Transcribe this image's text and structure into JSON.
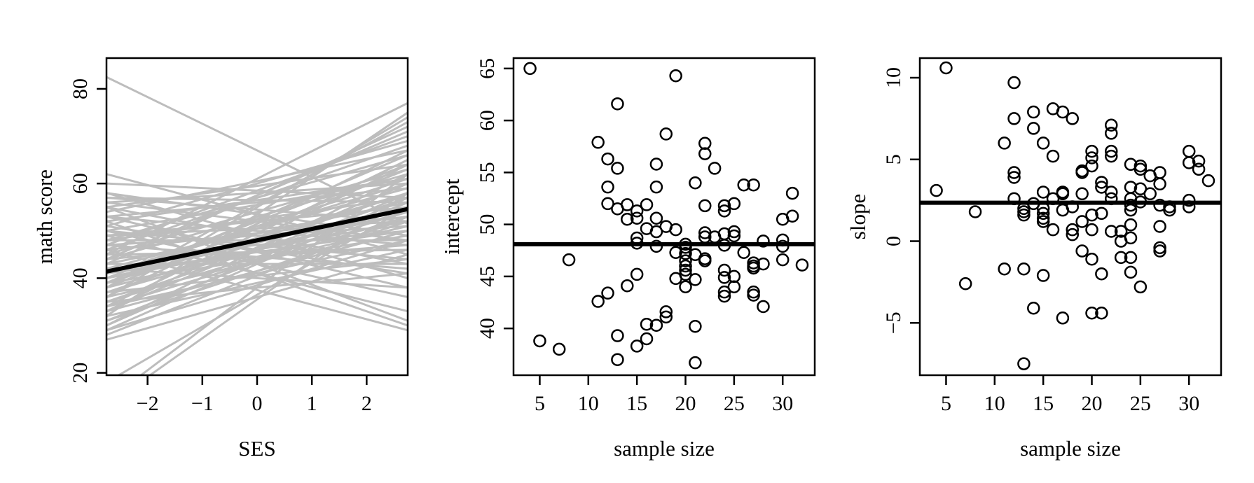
{
  "chart_data": [
    {
      "type": "line",
      "xlabel": "SES",
      "ylabel": "math score",
      "xlim": [
        -2.75,
        2.75
      ],
      "ylim": [
        19.5,
        86.5
      ],
      "xticks": [
        -2,
        -1,
        0,
        1,
        2
      ],
      "yticks": [
        20,
        40,
        60,
        80
      ],
      "xtick_labels": [
        "−2",
        "−1",
        "0",
        "1",
        "2"
      ],
      "ytick_labels": [
        "20",
        "40",
        "60",
        "80"
      ],
      "grid": false,
      "average_line": {
        "x": [
          -2.75,
          2.75
        ],
        "y": [
          41.4,
          54.6
        ],
        "color": "#000000"
      },
      "line_color": "#bdbdbd",
      "group_lines": [
        [
          82.5,
          51.5
        ],
        [
          62,
          45
        ],
        [
          58,
          49
        ],
        [
          57,
          56
        ],
        [
          56,
          60
        ],
        [
          55,
          64
        ],
        [
          53,
          47
        ],
        [
          52,
          61
        ],
        [
          50,
          44
        ],
        [
          49,
          52
        ],
        [
          48,
          57
        ],
        [
          47,
          70
        ],
        [
          46,
          68
        ],
        [
          45,
          77
        ],
        [
          44,
          62
        ],
        [
          43,
          72
        ],
        [
          42,
          59
        ],
        [
          41,
          50
        ],
        [
          40,
          55
        ],
        [
          39,
          66
        ],
        [
          38,
          63
        ],
        [
          37,
          58
        ],
        [
          36,
          74
        ],
        [
          35,
          54
        ],
        [
          34,
          65
        ],
        [
          33,
          60
        ],
        [
          32,
          75
        ],
        [
          31,
          56
        ],
        [
          30,
          62
        ],
        [
          29,
          48
        ],
        [
          28,
          53
        ],
        [
          27,
          45
        ],
        [
          58,
          40
        ],
        [
          55,
          43
        ],
        [
          53,
          38
        ],
        [
          51,
          41
        ],
        [
          50,
          36
        ],
        [
          49,
          55
        ],
        [
          48,
          48
        ],
        [
          47,
          51
        ],
        [
          46,
          53
        ],
        [
          45,
          46
        ],
        [
          44,
          50
        ],
        [
          43,
          56
        ],
        [
          42,
          47
        ],
        [
          41,
          60
        ],
        [
          40,
          52
        ],
        [
          39,
          49
        ],
        [
          38,
          54
        ],
        [
          37,
          44
        ],
        [
          36,
          51
        ],
        [
          35,
          57
        ],
        [
          34,
          48
        ],
        [
          33,
          50
        ],
        [
          32,
          46
        ],
        [
          30,
          58
        ],
        [
          55,
          31
        ],
        [
          52,
          30
        ],
        [
          49,
          33
        ],
        [
          46,
          29
        ],
        [
          54,
          67
        ],
        [
          51,
          69
        ],
        [
          44,
          71
        ],
        [
          38,
          73
        ],
        [
          40,
          64
        ],
        [
          36,
          67
        ],
        [
          60,
          57
        ],
        [
          57,
          52
        ],
        [
          43,
          43
        ],
        [
          47,
          42
        ],
        [
          42,
          38
        ],
        [
          35,
          41
        ],
        [
          48,
          66
        ],
        [
          45,
          63
        ],
        [
          41,
          61
        ],
        [
          39,
          58
        ],
        [
          37,
          55
        ],
        [
          34,
          53
        ],
        [
          33,
          64
        ],
        [
          31,
          52
        ],
        [
          29,
          57
        ],
        [
          56,
          48
        ],
        [
          53,
          59
        ],
        [
          50,
          61
        ],
        [
          13,
          58
        ],
        [
          14,
          62
        ],
        [
          18,
          55
        ]
      ]
    },
    {
      "type": "scatter",
      "xlabel": "sample size",
      "ylabel": "intercept",
      "xlim": [
        2.3,
        33.3
      ],
      "ylim": [
        35.5,
        66
      ],
      "xticks": [
        5,
        10,
        15,
        20,
        25,
        30
      ],
      "yticks": [
        40,
        45,
        50,
        55,
        60,
        65
      ],
      "xtick_labels": [
        "5",
        "10",
        "15",
        "20",
        "25",
        "30"
      ],
      "ytick_labels": [
        "40",
        "45",
        "50",
        "55",
        "60",
        "65"
      ],
      "grid": false,
      "hline": 48.1,
      "marker": "open-circle",
      "points": [
        [
          4,
          65
        ],
        [
          5,
          38.8
        ],
        [
          7,
          38
        ],
        [
          8,
          46.6
        ],
        [
          11,
          57.9
        ],
        [
          11,
          42.6
        ],
        [
          12,
          56.3
        ],
        [
          12,
          53.6
        ],
        [
          12,
          52
        ],
        [
          12,
          43.4
        ],
        [
          13,
          61.6
        ],
        [
          13,
          55.4
        ],
        [
          13,
          51.5
        ],
        [
          13,
          39.3
        ],
        [
          13,
          37
        ],
        [
          14,
          51.9
        ],
        [
          14,
          50.5
        ],
        [
          14,
          44.1
        ],
        [
          15,
          51.3
        ],
        [
          15,
          50.6
        ],
        [
          15,
          48.7
        ],
        [
          15,
          48.2
        ],
        [
          15,
          45.2
        ],
        [
          15,
          38.3
        ],
        [
          16,
          51.9
        ],
        [
          16,
          49.6
        ],
        [
          16,
          40.4
        ],
        [
          16,
          39
        ],
        [
          17,
          55.8
        ],
        [
          17,
          53.6
        ],
        [
          17,
          50.6
        ],
        [
          17,
          49.3
        ],
        [
          17,
          47.9
        ],
        [
          17,
          40.3
        ],
        [
          18,
          58.7
        ],
        [
          18,
          49.8
        ],
        [
          18,
          41.6
        ],
        [
          18,
          41.1
        ],
        [
          19,
          64.3
        ],
        [
          19,
          49.5
        ],
        [
          19,
          47.3
        ],
        [
          19,
          44.8
        ],
        [
          20,
          48.1
        ],
        [
          20,
          47.8
        ],
        [
          20,
          47.2
        ],
        [
          20,
          46.5
        ],
        [
          20,
          46
        ],
        [
          20,
          45.6
        ],
        [
          20,
          45.2
        ],
        [
          20,
          44
        ],
        [
          21,
          54
        ],
        [
          21,
          47.1
        ],
        [
          21,
          44.7
        ],
        [
          21,
          40.2
        ],
        [
          21,
          36.7
        ],
        [
          22,
          57.8
        ],
        [
          22,
          56.8
        ],
        [
          22,
          51.8
        ],
        [
          22,
          49.2
        ],
        [
          22,
          48.8
        ],
        [
          22,
          46.7
        ],
        [
          22,
          46.5
        ],
        [
          23,
          55.4
        ],
        [
          23,
          48.8
        ],
        [
          24,
          51.8
        ],
        [
          24,
          51.3
        ],
        [
          24,
          49.1
        ],
        [
          24,
          48
        ],
        [
          24,
          45.6
        ],
        [
          24,
          44.9
        ],
        [
          24,
          43.5
        ],
        [
          24,
          43.1
        ],
        [
          25,
          52
        ],
        [
          25,
          49.3
        ],
        [
          25,
          48.9
        ],
        [
          25,
          45
        ],
        [
          25,
          44
        ],
        [
          26,
          53.8
        ],
        [
          26,
          47.3
        ],
        [
          27,
          53.8
        ],
        [
          27,
          46.3
        ],
        [
          27,
          46
        ],
        [
          27,
          45.8
        ],
        [
          27,
          43.5
        ],
        [
          27,
          43.2
        ],
        [
          28,
          48.4
        ],
        [
          28,
          46.2
        ],
        [
          28,
          42.1
        ],
        [
          30,
          50.5
        ],
        [
          30,
          48.5
        ],
        [
          30,
          47.9
        ],
        [
          30,
          46.6
        ],
        [
          31,
          53
        ],
        [
          31,
          50.8
        ],
        [
          32,
          46.1
        ]
      ]
    },
    {
      "type": "scatter",
      "xlabel": "sample size",
      "ylabel": "slope",
      "xlim": [
        2.3,
        33.3
      ],
      "ylim": [
        -8.2,
        11.2
      ],
      "xticks": [
        5,
        10,
        15,
        20,
        25,
        30
      ],
      "yticks": [
        -5,
        0,
        5,
        10
      ],
      "xtick_labels": [
        "5",
        "10",
        "15",
        "20",
        "25",
        "30"
      ],
      "ytick_labels": [
        "−5",
        "0",
        "5",
        "10"
      ],
      "grid": false,
      "hline": 2.35,
      "marker": "open-circle",
      "points": [
        [
          4,
          3.1
        ],
        [
          5,
          10.6
        ],
        [
          7,
          -2.6
        ],
        [
          8,
          1.8
        ],
        [
          11,
          6
        ],
        [
          11,
          -1.7
        ],
        [
          12,
          9.7
        ],
        [
          12,
          7.5
        ],
        [
          12,
          4.2
        ],
        [
          12,
          3.9
        ],
        [
          12,
          2.6
        ],
        [
          13,
          2
        ],
        [
          13,
          1.8
        ],
        [
          13,
          1.6
        ],
        [
          13,
          -1.7
        ],
        [
          13,
          -7.5
        ],
        [
          14,
          7.9
        ],
        [
          14,
          6.9
        ],
        [
          14,
          2.3
        ],
        [
          14,
          -4.1
        ],
        [
          15,
          6
        ],
        [
          15,
          3
        ],
        [
          15,
          2
        ],
        [
          15,
          1.7
        ],
        [
          15,
          1.4
        ],
        [
          15,
          1.2
        ],
        [
          15,
          -2.1
        ],
        [
          16,
          8.1
        ],
        [
          16,
          5.2
        ],
        [
          16,
          2.6
        ],
        [
          16,
          0.7
        ],
        [
          17,
          7.9
        ],
        [
          17,
          3
        ],
        [
          17,
          2.9
        ],
        [
          17,
          1.9
        ],
        [
          17,
          -4.7
        ],
        [
          18,
          7.5
        ],
        [
          18,
          2.1
        ],
        [
          18,
          0.7
        ],
        [
          18,
          0.4
        ],
        [
          19,
          4.3
        ],
        [
          19,
          4.2
        ],
        [
          19,
          2.9
        ],
        [
          19,
          1.2
        ],
        [
          19,
          -0.6
        ],
        [
          20,
          5.5
        ],
        [
          20,
          5.1
        ],
        [
          20,
          4.6
        ],
        [
          20,
          1.6
        ],
        [
          20,
          0.7
        ],
        [
          20,
          -1.1
        ],
        [
          20,
          -4.4
        ],
        [
          21,
          3.6
        ],
        [
          21,
          3.3
        ],
        [
          21,
          1.7
        ],
        [
          21,
          -2
        ],
        [
          21,
          -4.4
        ],
        [
          22,
          7.1
        ],
        [
          22,
          6.6
        ],
        [
          22,
          5.5
        ],
        [
          22,
          5.2
        ],
        [
          22,
          3
        ],
        [
          22,
          2.6
        ],
        [
          22,
          0.6
        ],
        [
          23,
          0.6
        ],
        [
          23,
          0
        ],
        [
          23,
          -1
        ],
        [
          24,
          4.7
        ],
        [
          24,
          3.3
        ],
        [
          24,
          2.6
        ],
        [
          24,
          2.2
        ],
        [
          24,
          1.9
        ],
        [
          24,
          1
        ],
        [
          24,
          0.2
        ],
        [
          24,
          -1
        ],
        [
          24,
          -1.9
        ],
        [
          25,
          4.6
        ],
        [
          25,
          4.4
        ],
        [
          25,
          3.2
        ],
        [
          25,
          2.4
        ],
        [
          25,
          -2.8
        ],
        [
          26,
          4
        ],
        [
          26,
          2.9
        ],
        [
          27,
          4.2
        ],
        [
          27,
          3.5
        ],
        [
          27,
          2.2
        ],
        [
          27,
          0.9
        ],
        [
          27,
          -0.4
        ],
        [
          27,
          -0.6
        ],
        [
          28,
          2.1
        ],
        [
          28,
          1.9
        ],
        [
          30,
          5.5
        ],
        [
          30,
          4.8
        ],
        [
          30,
          2.5
        ],
        [
          30,
          2.1
        ],
        [
          31,
          4.9
        ],
        [
          31,
          4.4
        ],
        [
          32,
          3.7
        ]
      ]
    }
  ]
}
